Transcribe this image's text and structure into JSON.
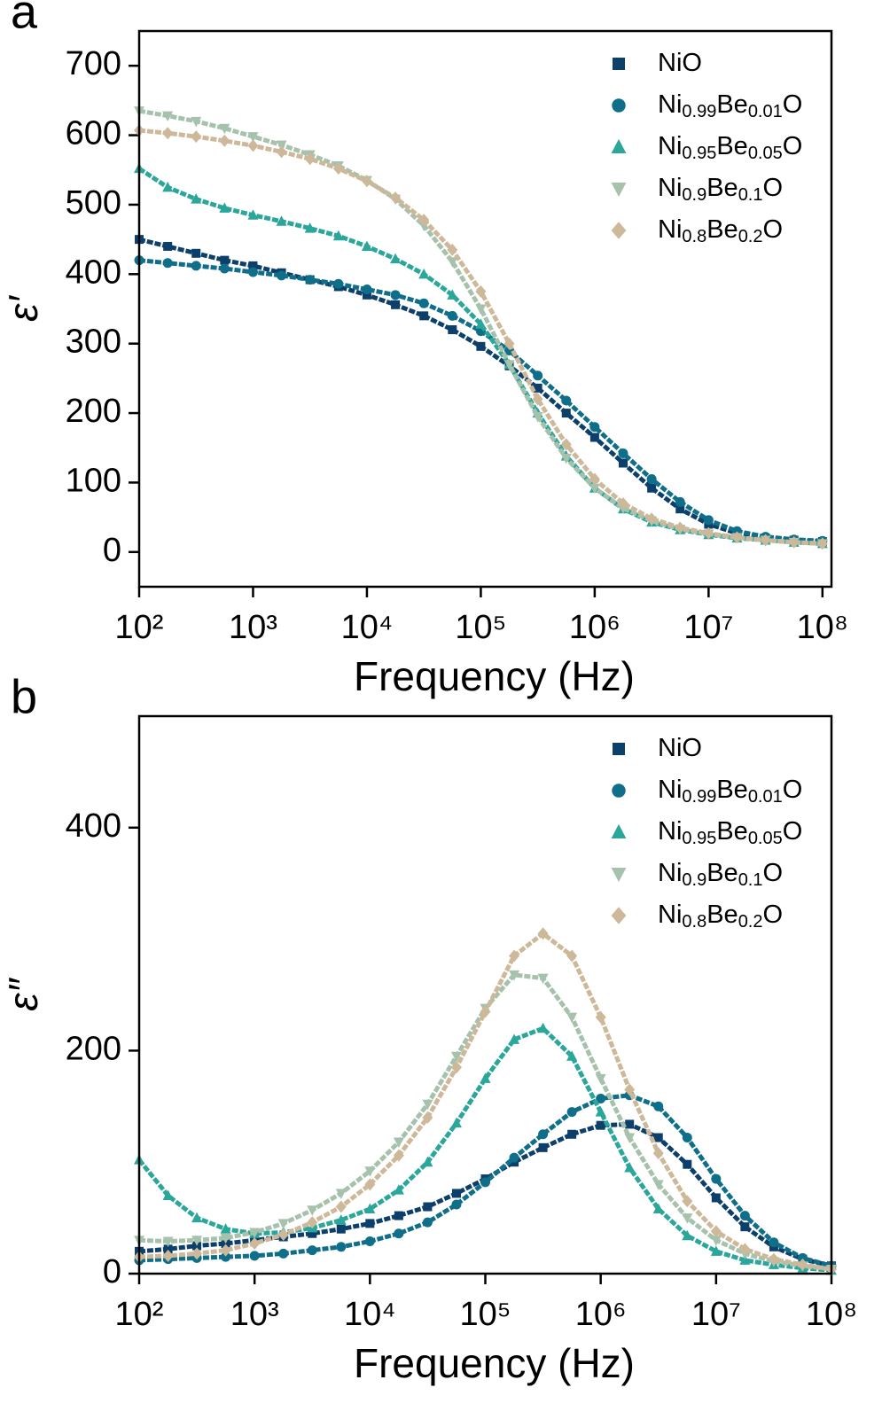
{
  "chart_data": [
    {
      "type": "scatter",
      "panel_label": "a",
      "x_label": "Frequency (Hz)",
      "y_label": "ε′",
      "xscale": "log",
      "legend": "upper right",
      "xlim": [
        100,
        120000000
      ],
      "ylim": [
        -50,
        750
      ],
      "xticks": [
        {
          "value": 100,
          "label": "10²"
        },
        {
          "value": 1000,
          "label": "10³"
        },
        {
          "value": 10000,
          "label": "10⁴"
        },
        {
          "value": 100000,
          "label": "10⁵"
        },
        {
          "value": 1000000,
          "label": "10⁶"
        },
        {
          "value": 10000000,
          "label": "10⁷"
        },
        {
          "value": 100000000,
          "label": "10⁸"
        }
      ],
      "yticks": [
        0,
        100,
        200,
        300,
        400,
        500,
        600,
        700
      ],
      "x": [
        100,
        178,
        316,
        562,
        1000,
        1778,
        3162,
        5623,
        10000,
        17783,
        31623,
        56234,
        100000,
        177828,
        316228,
        562341,
        1000000,
        1778279,
        3162278,
        5623413,
        10000000,
        17782794,
        31622777,
        56234133,
        100000000
      ],
      "series": [
        {
          "name": "NiO",
          "color": "#0d3f6b",
          "marker": "square",
          "values": [
            450,
            440,
            430,
            420,
            412,
            402,
            392,
            382,
            370,
            356,
            340,
            320,
            296,
            268,
            236,
            200,
            165,
            128,
            92,
            62,
            40,
            27,
            20,
            17,
            15
          ]
        },
        {
          "name": "Ni0.99Be0.01O",
          "color": "#0f6e8a",
          "marker": "circle",
          "values": [
            420,
            416,
            412,
            408,
            403,
            398,
            392,
            386,
            378,
            370,
            358,
            340,
            318,
            290,
            254,
            218,
            180,
            142,
            105,
            72,
            46,
            30,
            22,
            18,
            16
          ]
        },
        {
          "name": "Ni0.95Be0.05O",
          "color": "#2aa69a",
          "marker": "triangle-up",
          "values": [
            552,
            525,
            508,
            495,
            485,
            476,
            466,
            455,
            440,
            422,
            400,
            370,
            328,
            270,
            200,
            138,
            92,
            62,
            43,
            32,
            25,
            20,
            17,
            14,
            12
          ]
        },
        {
          "name": "Ni0.9Be0.1O",
          "color": "#a6c2ad",
          "marker": "triangle-down",
          "values": [
            635,
            628,
            620,
            610,
            598,
            586,
            572,
            556,
            535,
            508,
            470,
            418,
            350,
            270,
            195,
            135,
            92,
            63,
            45,
            33,
            26,
            21,
            17,
            14,
            12
          ]
        },
        {
          "name": "Ni0.8Be0.2O",
          "color": "#cdb89a",
          "marker": "diamond",
          "values": [
            607,
            603,
            598,
            592,
            585,
            576,
            566,
            552,
            534,
            510,
            478,
            435,
            375,
            300,
            220,
            155,
            105,
            70,
            48,
            35,
            27,
            21,
            17,
            14,
            12
          ]
        }
      ]
    },
    {
      "type": "scatter",
      "panel_label": "b",
      "x_label": "Frequency (Hz)",
      "y_label": "ε″",
      "xscale": "log",
      "legend": "upper right",
      "xlim": [
        100,
        100000000
      ],
      "ylim": [
        0,
        500
      ],
      "xticks": [
        {
          "value": 100,
          "label": "10²"
        },
        {
          "value": 1000,
          "label": "10³"
        },
        {
          "value": 10000,
          "label": "10⁴"
        },
        {
          "value": 100000,
          "label": "10⁵"
        },
        {
          "value": 1000000,
          "label": "10⁶"
        },
        {
          "value": 10000000,
          "label": "10⁷"
        },
        {
          "value": 100000000,
          "label": "10⁸"
        }
      ],
      "yticks": [
        0,
        200,
        400
      ],
      "x": [
        100,
        178,
        316,
        562,
        1000,
        1778,
        3162,
        5623,
        10000,
        17783,
        31623,
        56234,
        100000,
        177828,
        316228,
        562341,
        1000000,
        1778279,
        3162278,
        5623413,
        10000000,
        17782794,
        31622777,
        56234133,
        100000000
      ],
      "series": [
        {
          "name": "NiO",
          "color": "#0d3f6b",
          "marker": "square",
          "values": [
            20,
            22,
            25,
            27,
            30,
            33,
            36,
            40,
            45,
            52,
            60,
            72,
            85,
            100,
            113,
            125,
            133,
            134,
            122,
            98,
            68,
            42,
            24,
            13,
            7
          ]
        },
        {
          "name": "Ni0.99Be0.01O",
          "color": "#0f6e8a",
          "marker": "circle",
          "values": [
            12,
            13,
            14,
            15,
            16,
            18,
            21,
            24,
            29,
            36,
            46,
            62,
            82,
            104,
            125,
            145,
            157,
            160,
            150,
            122,
            85,
            52,
            28,
            14,
            7
          ]
        },
        {
          "name": "Ni0.95Be0.05O",
          "color": "#2aa69a",
          "marker": "triangle-up",
          "values": [
            102,
            70,
            50,
            40,
            36,
            37,
            41,
            48,
            58,
            75,
            100,
            135,
            175,
            210,
            220,
            195,
            145,
            95,
            58,
            34,
            20,
            12,
            8,
            5,
            3
          ]
        },
        {
          "name": "Ni0.9Be0.1O",
          "color": "#a6c2ad",
          "marker": "triangle-down",
          "values": [
            30,
            29,
            30,
            32,
            37,
            45,
            57,
            72,
            92,
            118,
            152,
            195,
            238,
            268,
            265,
            230,
            175,
            122,
            80,
            50,
            30,
            18,
            11,
            7,
            4
          ]
        },
        {
          "name": "Ni0.8Be0.2O",
          "color": "#cdb89a",
          "marker": "diamond",
          "values": [
            15,
            16,
            18,
            21,
            27,
            35,
            46,
            60,
            80,
            106,
            140,
            185,
            235,
            285,
            305,
            285,
            230,
            165,
            108,
            65,
            38,
            22,
            13,
            8,
            4
          ]
        }
      ]
    }
  ]
}
